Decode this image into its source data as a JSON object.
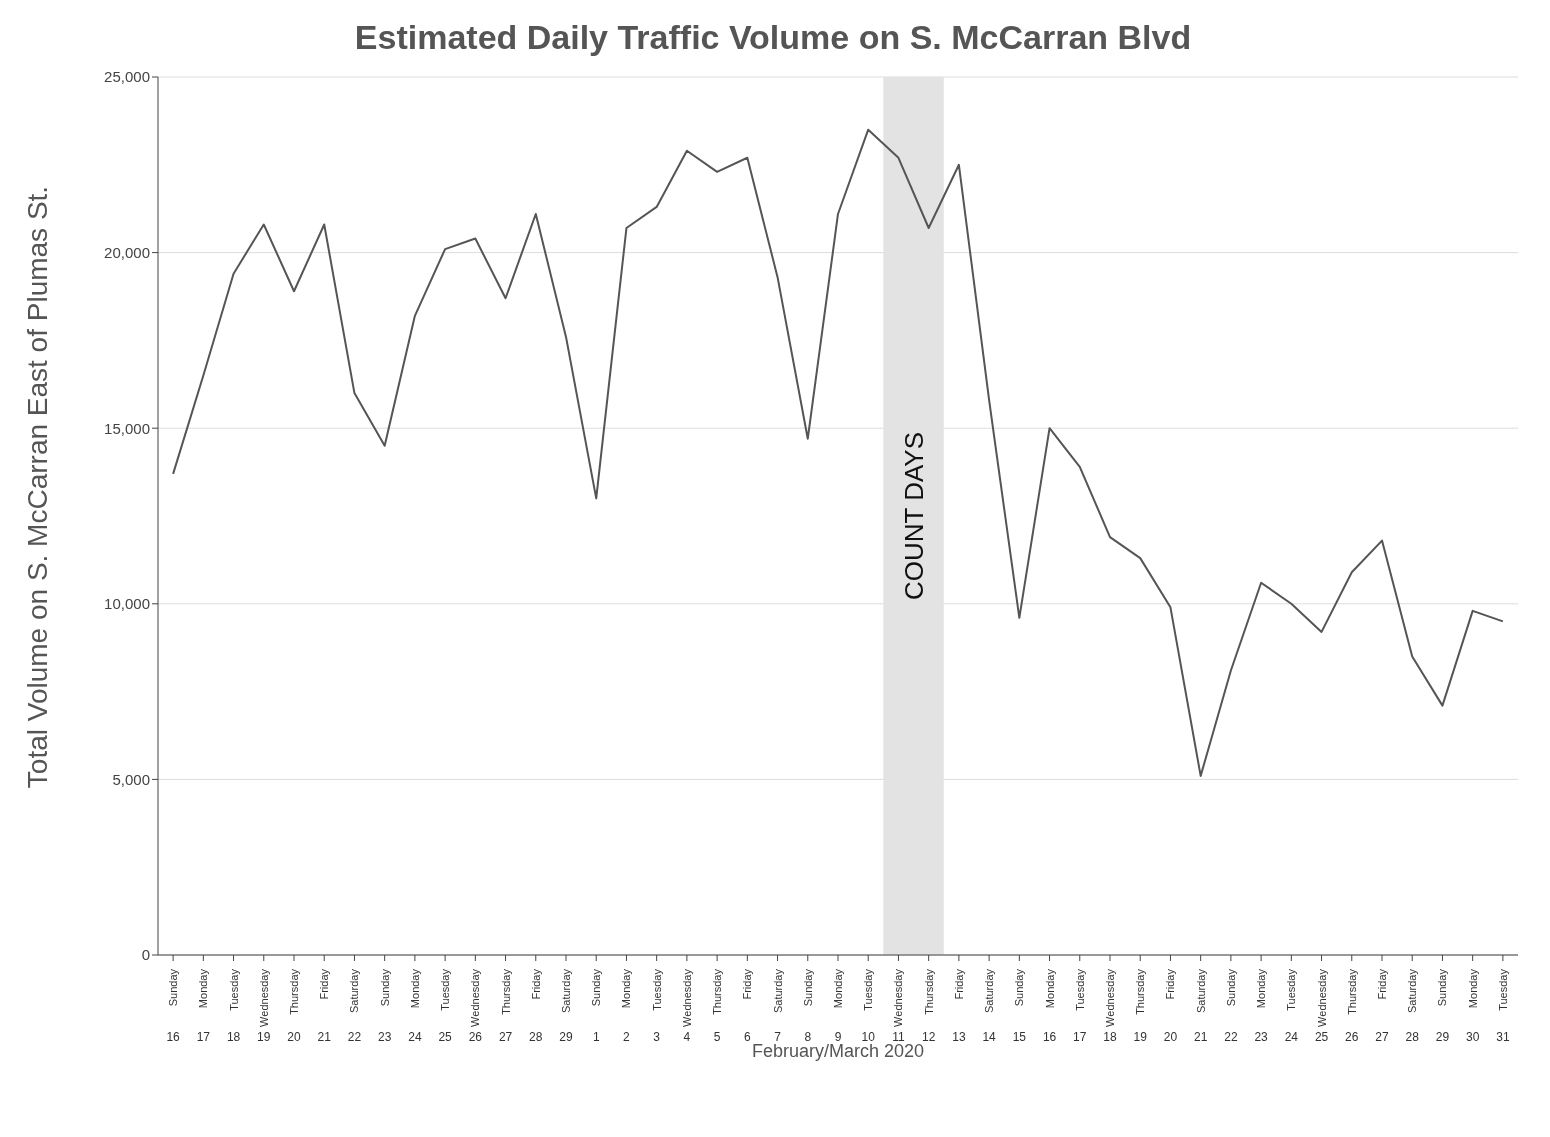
{
  "chart_data": {
    "type": "line",
    "title": "Estimated Daily Traffic Volume on S. McCarran Blvd",
    "xlabel": "February/March 2020",
    "ylabel": "Total Volume on S. McCarran East of Plumas St.",
    "categories": [
      "Sunday 16",
      "Monday 17",
      "Tuesday 18",
      "Wednesday 19",
      "Thursday 20",
      "Friday 21",
      "Saturday 22",
      "Sunday 23",
      "Monday 24",
      "Tuesday 25",
      "Wednesday 26",
      "Thursday 27",
      "Friday 28",
      "Saturday 29",
      "Sunday 1",
      "Monday 2",
      "Tuesday 3",
      "Wednesday 4",
      "Thursday 5",
      "Friday 6",
      "Saturday 7",
      "Sunday 8",
      "Monday 9",
      "Tuesday 10",
      "Wednesday 11",
      "Thursday 12",
      "Friday 13",
      "Saturday 14",
      "Sunday 15",
      "Monday 16",
      "Tuesday 17",
      "Wednesday 18",
      "Thursday 19",
      "Friday 20",
      "Saturday 21",
      "Sunday 22",
      "Monday 23",
      "Tuesday 24",
      "Wednesday 25",
      "Thursday 26",
      "Friday 27",
      "Saturday 28",
      "Sunday 29",
      "Monday 30",
      "Tuesday 31"
    ],
    "values": [
      13700,
      16500,
      19400,
      20800,
      18900,
      20800,
      16000,
      14500,
      18200,
      20100,
      20400,
      18700,
      21100,
      17600,
      13000,
      20700,
      21300,
      22900,
      22300,
      22700,
      19300,
      14700,
      21100,
      23500,
      22700,
      20700,
      22500,
      15800,
      9600,
      15000,
      13900,
      11900,
      11300,
      9900,
      5100,
      8100,
      10600,
      10000,
      9200,
      10900,
      11800,
      8500,
      7100,
      9800,
      9500
    ],
    "color": "#555555",
    "ylim": [
      0,
      25000
    ],
    "yticks": [
      0,
      {
        "value": 5000,
        "label": "5,000"
      },
      {
        "value": 10000,
        "label": "10,000"
      },
      {
        "value": 15000,
        "label": "15,000"
      },
      {
        "value": 20000,
        "label": "20,000"
      },
      {
        "value": 25000,
        "label": "25,000"
      }
    ],
    "grid": "y",
    "marker": "none",
    "line_style": "solid",
    "bands": [
      {
        "axis": "x",
        "from": "Wednesday 11",
        "to": "Thursday 12",
        "label": "COUNT DAYS",
        "color": "#e3e3e3"
      }
    ]
  }
}
